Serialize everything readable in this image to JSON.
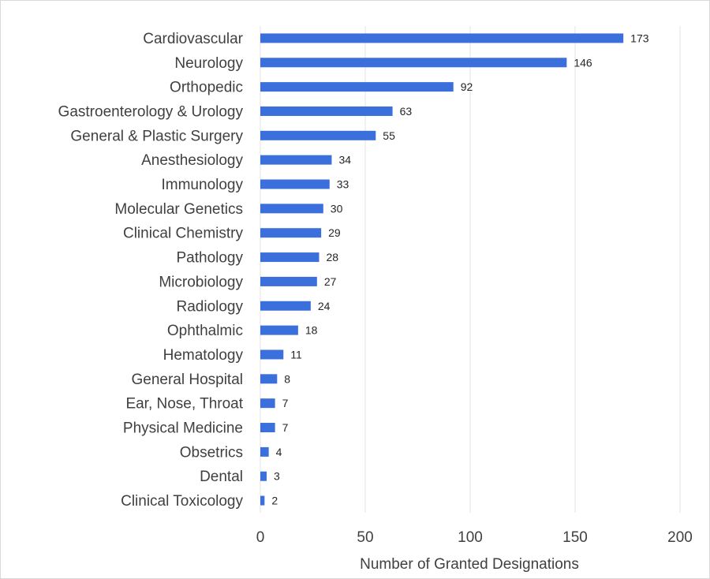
{
  "chart_data": {
    "type": "bar",
    "orientation": "horizontal",
    "categories": [
      "Cardiovascular",
      "Neurology",
      "Orthopedic",
      "Gastroenterology & Urology",
      "General & Plastic Surgery",
      "Anesthesiology",
      "Immunology",
      "Molecular Genetics",
      "Clinical Chemistry",
      "Pathology",
      "Microbiology",
      "Radiology",
      "Ophthalmic",
      "Hematology",
      "General Hospital",
      "Ear, Nose, Throat",
      "Physical Medicine",
      "Obsetrics",
      "Dental",
      "Clinical Toxicology"
    ],
    "values": [
      173,
      146,
      92,
      63,
      55,
      34,
      33,
      30,
      29,
      28,
      27,
      24,
      18,
      11,
      8,
      7,
      7,
      4,
      3,
      2
    ],
    "xlabel": "Number of Granted Designations",
    "ylabel": "",
    "xlim": [
      0,
      200
    ],
    "xticks": [
      0,
      50,
      100,
      150,
      200
    ],
    "grid": "vertical",
    "legend": "none",
    "data_labels": true,
    "bar_color": "#3a6fdc"
  }
}
